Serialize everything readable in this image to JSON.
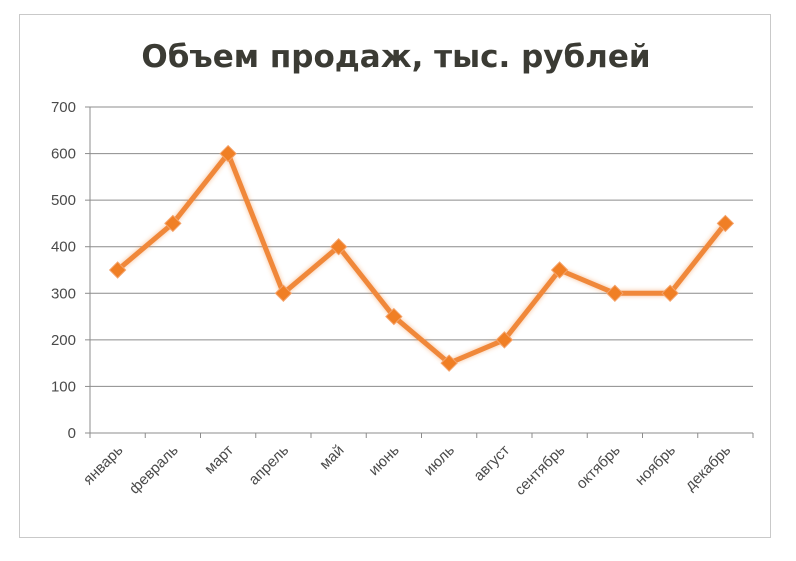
{
  "chart_data": {
    "type": "line",
    "title": "Объем продаж, тыс. рублей",
    "xlabel": "",
    "ylabel": "",
    "categories": [
      "январь",
      "февраль",
      "март",
      "апрель",
      "май",
      "июнь",
      "июль",
      "август",
      "сентябрь",
      "октябрь",
      "ноябрь",
      "декабрь"
    ],
    "series": [
      {
        "values": [
          350,
          450,
          600,
          300,
          400,
          250,
          150,
          200,
          350,
          300,
          300,
          450
        ]
      }
    ],
    "y_ticks": [
      "0",
      "100",
      "200",
      "300",
      "400",
      "500",
      "600",
      "700"
    ],
    "ylim": [
      0,
      700
    ],
    "grid": true,
    "legend": "none",
    "colors": {
      "line": "#f0883a",
      "marker": "#f07f25",
      "grid": "#8c8c8c",
      "title": "#3b3b34",
      "tick": "#4a4a4a"
    }
  }
}
